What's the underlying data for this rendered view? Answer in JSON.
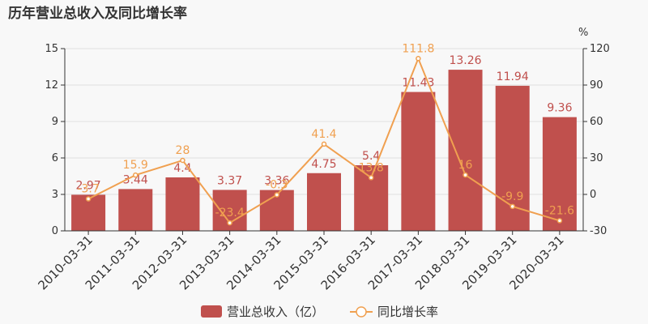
{
  "chart_data": {
    "type": "bar",
    "title": "历年营业总收入及同比增长率",
    "categories": [
      "2010-03-31",
      "2011-03-31",
      "2012-03-31",
      "2013-03-31",
      "2014-03-31",
      "2015-03-31",
      "2016-03-31",
      "2017-03-31",
      "2018-03-31",
      "2019-03-31",
      "2020-03-31"
    ],
    "series": [
      {
        "name": "营业总收入（亿）",
        "type": "bar",
        "axis": "left",
        "color": "#c0504d",
        "values": [
          2.97,
          3.44,
          4.4,
          3.37,
          3.36,
          4.75,
          5.4,
          11.43,
          13.26,
          11.94,
          9.36
        ]
      },
      {
        "name": "同比增长率",
        "type": "line",
        "axis": "right",
        "color": "#f0a050",
        "values": [
          -3.7,
          15.9,
          28,
          -23.4,
          -0.3,
          41.4,
          13.8,
          111.8,
          16,
          -9.9,
          -21.6
        ]
      }
    ],
    "y_left": {
      "min": 0,
      "max": 15,
      "ticks": [
        0,
        3,
        6,
        9,
        12,
        15
      ]
    },
    "y_right": {
      "min": -30,
      "max": 120,
      "ticks": [
        -30,
        0,
        30,
        60,
        90,
        120
      ],
      "unit": "%"
    },
    "legend_position": "bottom"
  }
}
